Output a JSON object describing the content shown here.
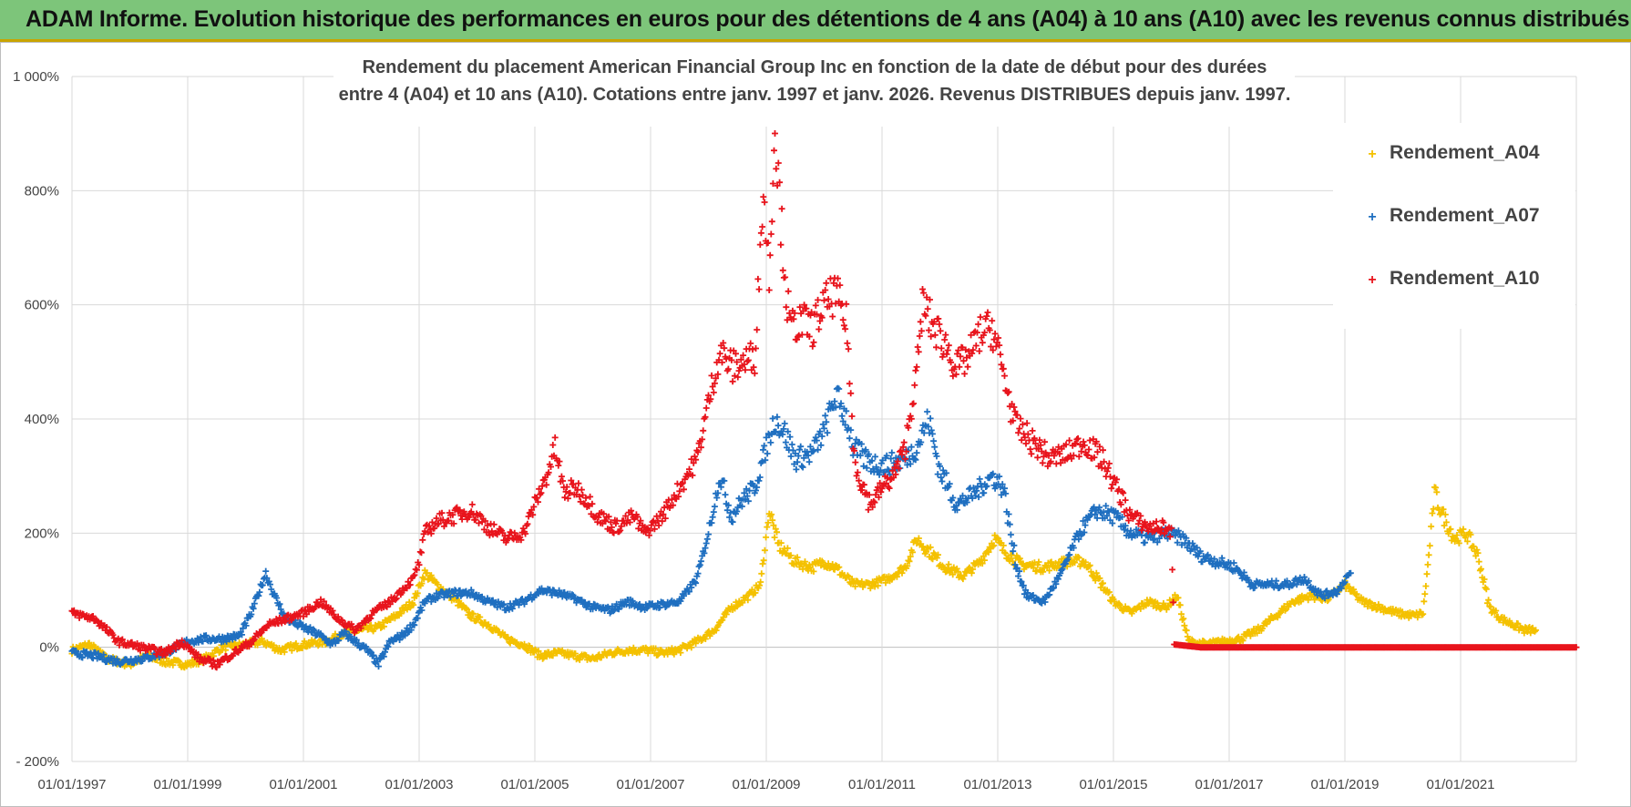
{
  "banner": {
    "title": "ADAM Informe. Evolution historique des performances en euros pour des détentions de 4 ans (A04) à 10 ans (A10) avec les revenus connus distribués"
  },
  "chart_data": {
    "type": "scatter",
    "title_lines": [
      "Rendement du placement American Financial Group Inc en fonction de la date de début pour des durées",
      "entre 4 (A04) et 10 ans (A10).  Cotations entre janv. 1997 et janv. 2026. Revenus DISTRIBUES  depuis janv. 1997."
    ],
    "xlabel": "",
    "ylabel": "",
    "xlim": [
      1997.0,
      2023.0
    ],
    "ylim": [
      -200,
      1000
    ],
    "x_ticks": [
      1997,
      1999,
      2001,
      2003,
      2005,
      2007,
      2009,
      2011,
      2013,
      2015,
      2017,
      2019,
      2021
    ],
    "x_tick_labels": [
      "01/01/1997",
      "01/01/1999",
      "01/01/2001",
      "01/01/2003",
      "01/01/2005",
      "01/01/2007",
      "01/01/2009",
      "01/01/2011",
      "01/01/2013",
      "01/01/2015",
      "01/01/2017",
      "01/01/2019",
      "01/01/2021"
    ],
    "y_ticks": [
      -200,
      0,
      200,
      400,
      600,
      800,
      1000
    ],
    "y_tick_labels": [
      "- 200%",
      "0%",
      "200%",
      "400%",
      "600%",
      "800%",
      "1 000%"
    ],
    "grid": true,
    "legend_position": "top-right",
    "marker": "+",
    "series": [
      {
        "name": "Rendement_A04",
        "color": "#f4c100",
        "points": [
          [
            1997.0,
            -5
          ],
          [
            1997.3,
            5
          ],
          [
            1997.6,
            -20
          ],
          [
            1998.0,
            -30
          ],
          [
            1998.3,
            -15
          ],
          [
            1998.6,
            -25
          ],
          [
            1999.0,
            -30
          ],
          [
            1999.3,
            -20
          ],
          [
            1999.6,
            0
          ],
          [
            2000.0,
            5
          ],
          [
            2000.3,
            10
          ],
          [
            2000.6,
            -5
          ],
          [
            2001.0,
            5
          ],
          [
            2001.4,
            10
          ],
          [
            2001.7,
            25
          ],
          [
            2002.0,
            30
          ],
          [
            2002.3,
            35
          ],
          [
            2002.6,
            55
          ],
          [
            2002.9,
            80
          ],
          [
            2003.1,
            130
          ],
          [
            2003.3,
            110
          ],
          [
            2003.6,
            85
          ],
          [
            2003.9,
            55
          ],
          [
            2004.2,
            40
          ],
          [
            2004.5,
            15
          ],
          [
            2004.8,
            5
          ],
          [
            2005.1,
            -15
          ],
          [
            2005.4,
            -10
          ],
          [
            2005.7,
            -15
          ],
          [
            2006.0,
            -20
          ],
          [
            2006.3,
            -10
          ],
          [
            2006.6,
            -5
          ],
          [
            2006.9,
            -5
          ],
          [
            2007.2,
            -10
          ],
          [
            2007.5,
            -5
          ],
          [
            2007.8,
            10
          ],
          [
            2008.1,
            30
          ],
          [
            2008.4,
            70
          ],
          [
            2008.7,
            90
          ],
          [
            2008.9,
            110
          ],
          [
            2009.05,
            240
          ],
          [
            2009.2,
            180
          ],
          [
            2009.5,
            150
          ],
          [
            2009.8,
            140
          ],
          [
            2010.0,
            150
          ],
          [
            2010.2,
            140
          ],
          [
            2010.5,
            110
          ],
          [
            2010.8,
            110
          ],
          [
            2011.1,
            120
          ],
          [
            2011.4,
            140
          ],
          [
            2011.6,
            190
          ],
          [
            2011.8,
            170
          ],
          [
            2012.1,
            140
          ],
          [
            2012.4,
            125
          ],
          [
            2012.7,
            150
          ],
          [
            2012.95,
            190
          ],
          [
            2013.1,
            170
          ],
          [
            2013.4,
            145
          ],
          [
            2013.8,
            140
          ],
          [
            2014.2,
            150
          ],
          [
            2014.5,
            150
          ],
          [
            2014.8,
            110
          ],
          [
            2015.0,
            80
          ],
          [
            2015.3,
            60
          ],
          [
            2015.6,
            80
          ],
          [
            2015.9,
            70
          ],
          [
            2016.1,
            90
          ],
          [
            2016.3,
            10
          ],
          [
            2016.6,
            5
          ],
          [
            2016.9,
            10
          ],
          [
            2017.2,
            15
          ],
          [
            2017.5,
            30
          ],
          [
            2017.8,
            55
          ],
          [
            2018.1,
            80
          ],
          [
            2018.4,
            90
          ],
          [
            2018.7,
            85
          ],
          [
            2019.0,
            110
          ],
          [
            2019.3,
            80
          ],
          [
            2019.6,
            70
          ],
          [
            2019.9,
            60
          ],
          [
            2020.2,
            55
          ],
          [
            2020.35,
            60
          ],
          [
            2020.45,
            160
          ],
          [
            2020.55,
            270
          ],
          [
            2020.7,
            230
          ],
          [
            2020.9,
            190
          ],
          [
            2021.1,
            200
          ],
          [
            2021.3,
            160
          ],
          [
            2021.5,
            70
          ],
          [
            2021.7,
            50
          ],
          [
            2021.9,
            40
          ],
          [
            2022.1,
            30
          ],
          [
            2022.3,
            30
          ]
        ]
      },
      {
        "name": "Rendement_A07",
        "color": "#1f6fc0",
        "points": [
          [
            1997.0,
            -10
          ],
          [
            1997.4,
            -15
          ],
          [
            1997.8,
            -25
          ],
          [
            1998.2,
            -20
          ],
          [
            1998.6,
            -10
          ],
          [
            1999.0,
            10
          ],
          [
            1999.3,
            15
          ],
          [
            1999.6,
            15
          ],
          [
            1999.9,
            20
          ],
          [
            2000.1,
            60
          ],
          [
            2000.35,
            130
          ],
          [
            2000.5,
            90
          ],
          [
            2000.7,
            50
          ],
          [
            2000.9,
            40
          ],
          [
            2001.1,
            30
          ],
          [
            2001.3,
            20
          ],
          [
            2001.5,
            5
          ],
          [
            2001.7,
            25
          ],
          [
            2001.9,
            10
          ],
          [
            2002.1,
            -5
          ],
          [
            2002.3,
            -30
          ],
          [
            2002.5,
            10
          ],
          [
            2002.7,
            20
          ],
          [
            2002.9,
            40
          ],
          [
            2003.1,
            80
          ],
          [
            2003.3,
            90
          ],
          [
            2003.6,
            95
          ],
          [
            2003.9,
            95
          ],
          [
            2004.2,
            80
          ],
          [
            2004.5,
            70
          ],
          [
            2004.8,
            80
          ],
          [
            2005.1,
            100
          ],
          [
            2005.4,
            95
          ],
          [
            2005.7,
            85
          ],
          [
            2006.0,
            70
          ],
          [
            2006.3,
            65
          ],
          [
            2006.6,
            80
          ],
          [
            2006.9,
            70
          ],
          [
            2007.2,
            75
          ],
          [
            2007.5,
            80
          ],
          [
            2007.8,
            120
          ],
          [
            2008.0,
            200
          ],
          [
            2008.2,
            300
          ],
          [
            2008.4,
            230
          ],
          [
            2008.6,
            260
          ],
          [
            2008.8,
            280
          ],
          [
            2009.0,
            350
          ],
          [
            2009.15,
            400
          ],
          [
            2009.3,
            380
          ],
          [
            2009.5,
            330
          ],
          [
            2009.8,
            340
          ],
          [
            2010.0,
            380
          ],
          [
            2010.2,
            440
          ],
          [
            2010.4,
            400
          ],
          [
            2010.5,
            350
          ],
          [
            2010.7,
            330
          ],
          [
            2010.9,
            320
          ],
          [
            2011.1,
            320
          ],
          [
            2011.4,
            330
          ],
          [
            2011.6,
            350
          ],
          [
            2011.8,
            400
          ],
          [
            2012.0,
            310
          ],
          [
            2012.3,
            250
          ],
          [
            2012.6,
            270
          ],
          [
            2012.9,
            300
          ],
          [
            2013.1,
            280
          ],
          [
            2013.3,
            150
          ],
          [
            2013.5,
            90
          ],
          [
            2013.8,
            80
          ],
          [
            2014.1,
            130
          ],
          [
            2014.4,
            200
          ],
          [
            2014.7,
            240
          ],
          [
            2015.0,
            230
          ],
          [
            2015.3,
            200
          ],
          [
            2015.6,
            190
          ],
          [
            2015.9,
            200
          ],
          [
            2016.2,
            190
          ],
          [
            2016.5,
            160
          ],
          [
            2016.8,
            150
          ],
          [
            2017.1,
            140
          ],
          [
            2017.4,
            110
          ],
          [
            2017.7,
            110
          ],
          [
            2018.0,
            110
          ],
          [
            2018.3,
            120
          ],
          [
            2018.6,
            90
          ],
          [
            2018.9,
            100
          ],
          [
            2019.0,
            120
          ],
          [
            2019.1,
            130
          ]
        ]
      },
      {
        "name": "Rendement_A10",
        "color": "#e8141c",
        "points": [
          [
            1997.0,
            60
          ],
          [
            1997.4,
            50
          ],
          [
            1997.8,
            10
          ],
          [
            1998.2,
            0
          ],
          [
            1998.6,
            -10
          ],
          [
            1998.9,
            10
          ],
          [
            1999.2,
            -20
          ],
          [
            1999.5,
            -30
          ],
          [
            1999.8,
            -10
          ],
          [
            2000.1,
            10
          ],
          [
            2000.4,
            40
          ],
          [
            2000.7,
            50
          ],
          [
            2001.0,
            60
          ],
          [
            2001.3,
            80
          ],
          [
            2001.6,
            50
          ],
          [
            2001.9,
            30
          ],
          [
            2002.2,
            60
          ],
          [
            2002.5,
            80
          ],
          [
            2002.7,
            100
          ],
          [
            2002.9,
            120
          ],
          [
            2003.0,
            150
          ],
          [
            2003.1,
            200
          ],
          [
            2003.3,
            220
          ],
          [
            2003.6,
            230
          ],
          [
            2003.9,
            240
          ],
          [
            2004.2,
            210
          ],
          [
            2004.5,
            190
          ],
          [
            2004.8,
            200
          ],
          [
            2005.0,
            250
          ],
          [
            2005.2,
            300
          ],
          [
            2005.35,
            350
          ],
          [
            2005.5,
            270
          ],
          [
            2005.7,
            280
          ],
          [
            2005.9,
            260
          ],
          [
            2006.1,
            230
          ],
          [
            2006.4,
            210
          ],
          [
            2006.7,
            230
          ],
          [
            2006.9,
            200
          ],
          [
            2007.2,
            230
          ],
          [
            2007.5,
            280
          ],
          [
            2007.8,
            330
          ],
          [
            2008.0,
            430
          ],
          [
            2008.2,
            520
          ],
          [
            2008.4,
            490
          ],
          [
            2008.6,
            500
          ],
          [
            2008.8,
            510
          ],
          [
            2008.95,
            800
          ],
          [
            2009.05,
            650
          ],
          [
            2009.15,
            920
          ],
          [
            2009.25,
            750
          ],
          [
            2009.4,
            560
          ],
          [
            2009.6,
            570
          ],
          [
            2009.8,
            560
          ],
          [
            2010.0,
            600
          ],
          [
            2010.2,
            620
          ],
          [
            2010.4,
            560
          ],
          [
            2010.5,
            350
          ],
          [
            2010.6,
            300
          ],
          [
            2010.8,
            250
          ],
          [
            2011.0,
            280
          ],
          [
            2011.2,
            300
          ],
          [
            2011.4,
            350
          ],
          [
            2011.6,
            480
          ],
          [
            2011.7,
            600
          ],
          [
            2011.9,
            560
          ],
          [
            2012.1,
            530
          ],
          [
            2012.3,
            490
          ],
          [
            2012.5,
            510
          ],
          [
            2012.7,
            550
          ],
          [
            2012.9,
            560
          ],
          [
            2013.1,
            480
          ],
          [
            2013.3,
            390
          ],
          [
            2013.6,
            360
          ],
          [
            2013.9,
            330
          ],
          [
            2014.2,
            340
          ],
          [
            2014.5,
            360
          ],
          [
            2014.8,
            330
          ],
          [
            2015.0,
            290
          ],
          [
            2015.3,
            230
          ],
          [
            2015.6,
            210
          ],
          [
            2015.9,
            210
          ],
          [
            2016.0,
            200
          ],
          [
            2016.05,
            5
          ],
          [
            2016.5,
            0
          ],
          [
            2017.0,
            0
          ],
          [
            2017.5,
            0
          ],
          [
            2018.0,
            0
          ],
          [
            2018.5,
            0
          ],
          [
            2019.0,
            0
          ],
          [
            2019.5,
            0
          ],
          [
            2020.0,
            0
          ],
          [
            2020.5,
            0
          ],
          [
            2021.0,
            0
          ],
          [
            2021.5,
            0
          ],
          [
            2022.0,
            0
          ],
          [
            2022.5,
            0
          ],
          [
            2023.0,
            0
          ]
        ]
      }
    ]
  }
}
